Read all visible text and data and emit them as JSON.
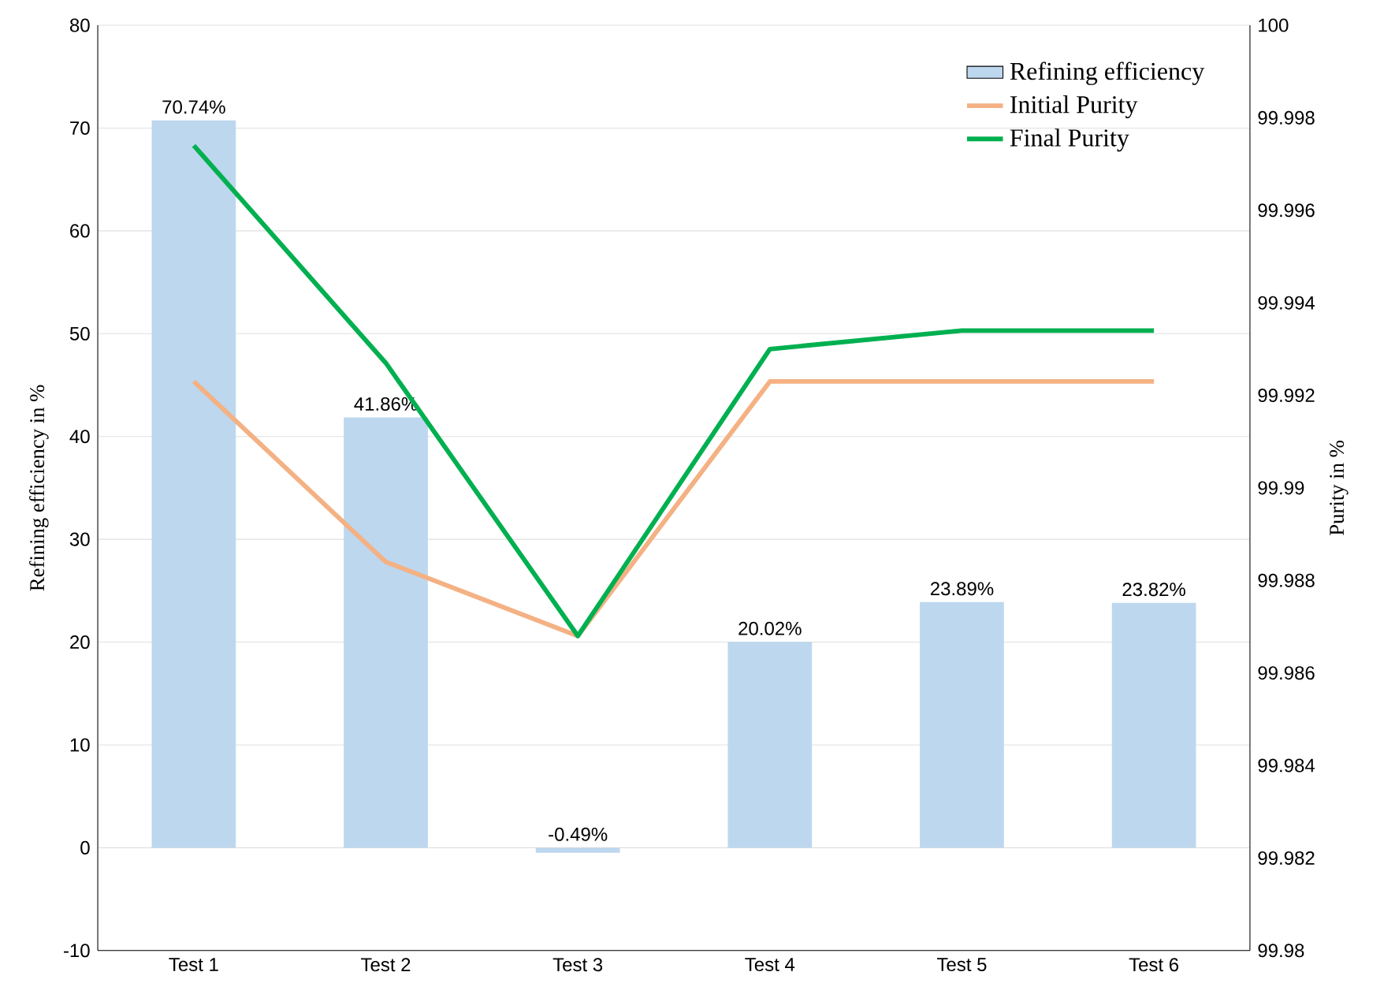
{
  "chart_data": {
    "type": "bar",
    "categories": [
      "Test 1",
      "Test 2",
      "Test 3",
      "Test 4",
      "Test 5",
      "Test 6"
    ],
    "ylabel": "Refining efficiency in %",
    "y2label": "Purity in %",
    "series": [
      {
        "name": "Refining efficiency",
        "color": "#bdd7ee",
        "values": [
          70.74,
          41.86,
          -0.49,
          20.02,
          23.89,
          23.82
        ],
        "value_labels": [
          "70.74%",
          "41.86%",
          "-0.49%",
          "20.02%",
          "23.89%",
          "23.82%"
        ]
      },
      {
        "name": "Initial Purity",
        "type": "line",
        "axis": "y2",
        "color": "#f4b183",
        "values": [
          99.9923,
          99.9884,
          99.9868,
          99.9923,
          99.9923,
          99.9923
        ]
      },
      {
        "name": "Final Purity",
        "type": "line",
        "axis": "y2",
        "color": "#00b050",
        "values": [
          99.9974,
          99.9927,
          99.9868,
          99.993,
          99.9934,
          99.9934
        ]
      }
    ],
    "ylim": [
      -10,
      80
    ],
    "yticks": [
      -10,
      0,
      10,
      20,
      30,
      40,
      50,
      60,
      70,
      80
    ],
    "y2lim": [
      99.98,
      100
    ],
    "y2ticks": [
      99.98,
      99.982,
      99.984,
      99.986,
      99.988,
      99.99,
      99.992,
      99.994,
      99.996,
      99.998,
      100
    ],
    "grid": "y",
    "legend": "top right",
    "marker": "none",
    "line_style": "solid"
  }
}
